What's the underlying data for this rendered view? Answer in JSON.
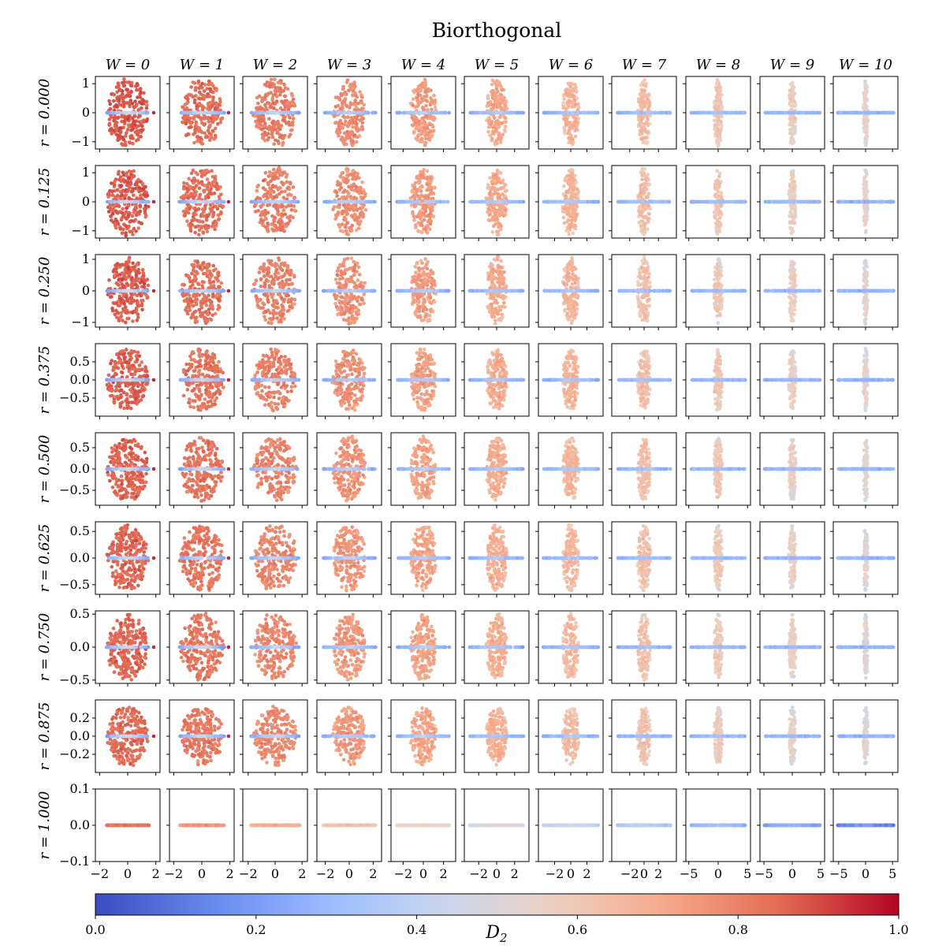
{
  "chart_data": {
    "type": "scatter",
    "title": "Biorthogonal",
    "layout": "grid of small-multiple scatter plots (rows: r, columns: W)",
    "column_labels": [
      "W = 0",
      "W = 1",
      "W = 2",
      "W = 3",
      "W = 4",
      "W = 5",
      "W = 6",
      "W = 7",
      "W = 8",
      "W = 9",
      "W = 10"
    ],
    "row_labels": [
      "r = 0.000",
      "r = 0.125",
      "r = 0.250",
      "r = 0.375",
      "r = 0.500",
      "r = 0.625",
      "r = 0.750",
      "r = 0.875",
      "r = 1.000"
    ],
    "W_values": [
      0,
      1,
      2,
      3,
      4,
      5,
      6,
      7,
      8,
      9,
      10
    ],
    "r_values": [
      0.0,
      0.125,
      0.25,
      0.375,
      0.5,
      0.625,
      0.75,
      0.875,
      1.0
    ],
    "row_y_ranges": [
      [
        -1.25,
        1.25
      ],
      [
        -1.25,
        1.25
      ],
      [
        -1.15,
        1.15
      ],
      [
        -1.0,
        1.0
      ],
      [
        -0.85,
        0.85
      ],
      [
        -0.68,
        0.68
      ],
      [
        -0.55,
        0.55
      ],
      [
        -0.4,
        0.4
      ],
      [
        -0.1,
        0.1
      ]
    ],
    "row_y_ticks": [
      {
        "values": [
          -1,
          0,
          1
        ],
        "labels": [
          "−1",
          "0",
          "1"
        ]
      },
      {
        "values": [
          -1,
          0,
          1
        ],
        "labels": [
          "−1",
          "0",
          "1"
        ]
      },
      {
        "values": [
          -1,
          0,
          1
        ],
        "labels": [
          "−1",
          "0",
          "1"
        ]
      },
      {
        "values": [
          -0.5,
          0,
          0.5
        ],
        "labels": [
          "−0.5",
          "0.0",
          "0.5"
        ]
      },
      {
        "values": [
          -0.5,
          0,
          0.5
        ],
        "labels": [
          "−0.5",
          "0.0",
          "0.5"
        ]
      },
      {
        "values": [
          -0.5,
          0,
          0.5
        ],
        "labels": [
          "−0.5",
          "0.0",
          "0.5"
        ]
      },
      {
        "values": [
          -0.5,
          0,
          0.5
        ],
        "labels": [
          "−0.5",
          "0.0",
          "0.5"
        ]
      },
      {
        "values": [
          -0.2,
          0,
          0.2
        ],
        "labels": [
          "−0.2",
          "0.0",
          "0.2"
        ]
      },
      {
        "values": [
          -0.1,
          0,
          0.1
        ],
        "labels": [
          "−0.1",
          "0.0",
          "0.1"
        ]
      }
    ],
    "col_x_ranges": [
      [
        -2.3,
        2.3
      ],
      [
        -2.3,
        2.3
      ],
      [
        -2.4,
        2.4
      ],
      [
        -2.7,
        2.7
      ],
      [
        -3.2,
        3.2
      ],
      [
        -3.6,
        3.6
      ],
      [
        -4.0,
        4.0
      ],
      [
        -4.5,
        4.5
      ],
      [
        -5.5,
        5.5
      ],
      [
        -5.7,
        5.7
      ],
      [
        -6.0,
        6.0
      ]
    ],
    "col_x_ticks": [
      {
        "values": [
          -2,
          0,
          2
        ],
        "labels": [
          "−2",
          "0",
          "2"
        ]
      },
      {
        "values": [
          -2,
          0,
          2
        ],
        "labels": [
          "−2",
          "0",
          "2"
        ]
      },
      {
        "values": [
          -2,
          0,
          2
        ],
        "labels": [
          "−2",
          "0",
          "2"
        ]
      },
      {
        "values": [
          -2,
          0,
          2
        ],
        "labels": [
          "−2",
          "0",
          "2"
        ]
      },
      {
        "values": [
          -2,
          0,
          2
        ],
        "labels": [
          "−2",
          "0",
          "2"
        ]
      },
      {
        "values": [
          -2,
          0,
          2
        ],
        "labels": [
          "−2",
          "0",
          "2"
        ]
      },
      {
        "values": [
          -2,
          0,
          2
        ],
        "labels": [
          "−2",
          "0",
          "2"
        ]
      },
      {
        "values": [
          -2,
          0,
          2
        ],
        "labels": [
          "−2",
          "0",
          "2"
        ]
      },
      {
        "values": [
          -5,
          0,
          5
        ],
        "labels": [
          "−5",
          "0",
          "5"
        ]
      },
      {
        "values": [
          -5,
          0,
          5
        ],
        "labels": [
          "−5",
          "0",
          "5"
        ]
      },
      {
        "values": [
          -5,
          0,
          5
        ],
        "labels": [
          "−5",
          "0",
          "5"
        ]
      }
    ],
    "blob_half_widths": [
      1.45,
      1.5,
      1.55,
      1.35,
      1.25,
      1.15,
      1.0,
      0.9,
      0.7,
      0.6,
      0.4
    ],
    "line_half_widths": [
      1.5,
      1.6,
      1.8,
      2.2,
      2.6,
      3.0,
      3.4,
      3.7,
      4.6,
      4.9,
      5.2
    ],
    "blob_half_heights": [
      1.15,
      1.15,
      1.05,
      0.85,
      0.75,
      0.62,
      0.5,
      0.32,
      0.0
    ],
    "colorbar": {
      "label": "D2",
      "label_main": "D",
      "label_sub": "2",
      "range": [
        0.0,
        1.0
      ],
      "ticks": [
        0.0,
        0.2,
        0.4,
        0.6,
        0.8,
        1.0
      ],
      "tick_labels": [
        "0.0",
        "0.2",
        "0.4",
        "0.6",
        "0.8",
        "1.0"
      ],
      "colormap": "coolwarm",
      "colormap_stops": [
        "#3b4cc0",
        "#6688ee",
        "#9abbff",
        "#c9d7f0",
        "#edd1c2",
        "#f7a889",
        "#e26952",
        "#b40426"
      ]
    }
  }
}
